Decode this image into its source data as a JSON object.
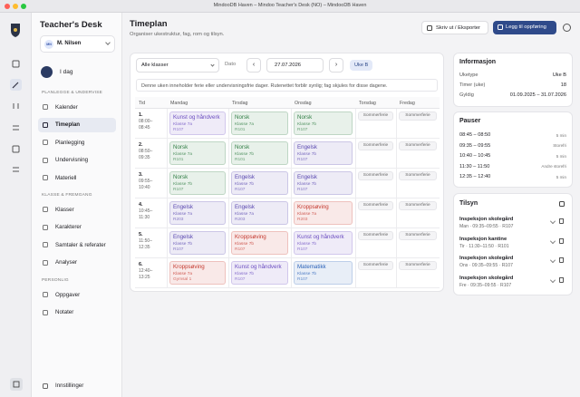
{
  "window": {
    "title": "MindooDB Haven – Mindoo Teacher's Desk (NO) – MindooDB Haven"
  },
  "sidebar": {
    "brand": "Teacher's Desk",
    "user": {
      "initials": "MN",
      "name": "M. Nilsen"
    },
    "today": "I dag",
    "sections": [
      {
        "heading": "PLANLEGGE & UNDERVISE",
        "items": [
          "Kalender",
          "Timeplan",
          "Planlegging",
          "Undervisning",
          "Materiell"
        ]
      },
      {
        "heading": "KLASSE & FREMGANG",
        "items": [
          "Klasser",
          "Karakterer",
          "Samtaler & referater",
          "Analyser"
        ]
      },
      {
        "heading": "PERSONLIG",
        "items": [
          "Oppgaver",
          "Notater"
        ]
      }
    ],
    "settings": "Innstillinger"
  },
  "header": {
    "title": "Timeplan",
    "subtitle": "Organiser ukestruktur, fag, rom og tilsyn.",
    "actions": [
      "Skriv ut / Eksporter",
      "Legg til oppføring"
    ]
  },
  "toolbar": {
    "class_filter": "Alle klasser",
    "date_label": "Dato",
    "date": "27.07.2026",
    "week": "Uke B"
  },
  "notice": "Denne uken inneholder ferie eller undervisningsfrie dager. Rutenettet forblir synlig; fag skjules for disse dagene.",
  "timetable": {
    "columns": [
      "Tid",
      "Mandag",
      "Tirsdag",
      "Onsdag",
      "Torsdag",
      "Fredag"
    ],
    "rows": [
      {
        "number": "1.",
        "time": "08:00–08:45",
        "cells": [
          {
            "subject": "Kunst og håndverk",
            "class": "Klasse 7a",
            "room": "R107",
            "color": "#6a4cc0"
          },
          {
            "subject": "Norsk",
            "class": "Klasse 7a",
            "room": "R101",
            "color": "#2f7d43"
          },
          {
            "subject": "Norsk",
            "class": "Klasse 7b",
            "room": "R107",
            "color": "#2f7d43"
          },
          {
            "holiday": "Sommerferie"
          },
          {
            "holiday": "Sommerferie"
          }
        ]
      },
      {
        "number": "2.",
        "time": "08:50–09:35",
        "cells": [
          {
            "subject": "Norsk",
            "class": "Klasse 7a",
            "room": "R101",
            "color": "#2f7d43"
          },
          {
            "subject": "Norsk",
            "class": "Klasse 7b",
            "room": "R101",
            "color": "#2f7d43"
          },
          {
            "subject": "Engelsk",
            "class": "Klasse 7b",
            "room": "R107",
            "color": "#5a48b0"
          },
          {
            "holiday": "Sommerferie"
          },
          {
            "holiday": "Sommerferie"
          }
        ]
      },
      {
        "number": "3.",
        "time": "09:55–10:40",
        "cells": [
          {
            "subject": "Norsk",
            "class": "Klasse 7b",
            "room": "R107",
            "color": "#2f7d43"
          },
          {
            "subject": "Engelsk",
            "class": "Klasse 7b",
            "room": "R107",
            "color": "#5a48b0"
          },
          {
            "subject": "Engelsk",
            "class": "Klasse 7b",
            "room": "R107",
            "color": "#5a48b0"
          },
          {
            "holiday": "Sommerferie"
          },
          {
            "holiday": "Sommerferie"
          }
        ]
      },
      {
        "number": "4.",
        "time": "10:45–11:30",
        "cells": [
          {
            "subject": "Engelsk",
            "class": "Klasse 7a",
            "room": "R203",
            "color": "#5a48b0"
          },
          {
            "subject": "Engelsk",
            "class": "Klasse 7a",
            "room": "R203",
            "color": "#5a48b0"
          },
          {
            "subject": "Kroppsøving",
            "class": "Klasse 7a",
            "room": "R203",
            "color": "#c4382e"
          },
          {
            "holiday": "Sommerferie"
          },
          {
            "holiday": "Sommerferie"
          }
        ]
      },
      {
        "number": "5.",
        "time": "11:50–12:35",
        "cells": [
          {
            "subject": "Engelsk",
            "class": "Klasse 7b",
            "room": "R107",
            "color": "#5a48b0"
          },
          {
            "subject": "Kroppsøving",
            "class": "Klasse 7b",
            "room": "R107",
            "color": "#c4382e"
          },
          {
            "subject": "Kunst og håndverk",
            "class": "Klasse 7b",
            "room": "R107",
            "color": "#6a4cc0"
          },
          {
            "holiday": "Sommerferie"
          },
          {
            "holiday": "Sommerferie"
          }
        ]
      },
      {
        "number": "6.",
        "time": "12:40–13:25",
        "cells": [
          {
            "subject": "Kroppsøving",
            "class": "Klasse 7a",
            "room": "Gymsal 1",
            "color": "#c4382e"
          },
          {
            "subject": "Kunst og håndverk",
            "class": "Klasse 7b",
            "room": "R107",
            "color": "#6a4cc0"
          },
          {
            "subject": "Matematikk",
            "class": "Klasse 7b",
            "room": "R107",
            "color": "#2b62b8"
          },
          {
            "holiday": "Sommerferie"
          },
          {
            "holiday": "Sommerferie"
          }
        ]
      }
    ]
  },
  "info": {
    "title": "Informasjon",
    "rows": [
      [
        "Uketype",
        "Uke B"
      ],
      [
        "Timer (uke)",
        18
      ],
      [
        "Gyldig",
        "01.09.2025 – 31.07.2026"
      ]
    ]
  },
  "breaks": {
    "title": "Pauser",
    "rows": [
      [
        "08:45 – 08:50",
        "5 min"
      ],
      [
        "09:35 – 09:55",
        "Storefri"
      ],
      [
        "10:40 – 10:45",
        "5 min"
      ],
      [
        "11:30 – 11:50",
        "Andre storefri"
      ],
      [
        "12:35 – 12:40",
        "5 min"
      ]
    ]
  },
  "supervision": {
    "title": "Tilsyn",
    "items": [
      {
        "title": "Inspeksjon skolegård",
        "detail": "Man · 09:35–09:55 · R107"
      },
      {
        "title": "Inspeksjon kantine",
        "detail": "Tir · 11:30–11:50 · R101"
      },
      {
        "title": "Inspeksjon skolegård",
        "detail": "Ons · 09:35–09:55 · R107"
      },
      {
        "title": "Inspeksjon skolegård",
        "detail": "Fre · 09:35–09:55 · R107"
      }
    ]
  }
}
